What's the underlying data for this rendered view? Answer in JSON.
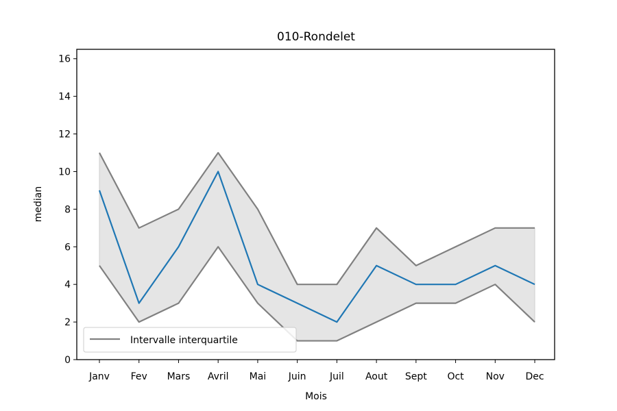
{
  "chart_data": {
    "type": "line",
    "title": "010-Rondelet",
    "xlabel": "Mois",
    "ylabel": "median",
    "categories": [
      "Janv",
      "Fev",
      "Mars",
      "Avril",
      "Mai",
      "Juin",
      "Juil",
      "Aout",
      "Sept",
      "Oct",
      "Nov",
      "Dec"
    ],
    "ylim": [
      0,
      16.5
    ],
    "yticks": [
      0,
      2,
      4,
      6,
      8,
      10,
      12,
      14,
      16
    ],
    "grid": false,
    "legend_position": "lower-left",
    "series": [
      {
        "role": "median",
        "color": "#1f77b4",
        "values": [
          9,
          3,
          6,
          10,
          4,
          3,
          2,
          5,
          4,
          4,
          5,
          4
        ]
      },
      {
        "role": "q3",
        "name": "Intervalle interquartile",
        "color": "#808080",
        "values": [
          11,
          7,
          8,
          11,
          8,
          4,
          4,
          7,
          5,
          6,
          7,
          7
        ]
      },
      {
        "role": "q1",
        "color": "#808080",
        "values": [
          5,
          2,
          3,
          6,
          3,
          1,
          1,
          2,
          3,
          3,
          4,
          2
        ]
      }
    ],
    "band_fill": "#e5e5e5"
  }
}
